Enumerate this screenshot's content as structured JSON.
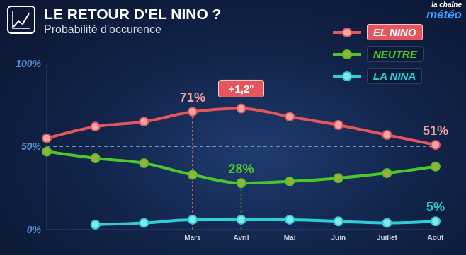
{
  "chart_data": {
    "type": "line",
    "title": "LE RETOUR D'EL NINO ?",
    "subtitle": "Probabilité d'occurence",
    "source": "la chaîne météo",
    "categories": [
      null,
      null,
      null,
      "Mars",
      "Avril",
      "Mai",
      "Juin",
      "Juillet",
      "Août"
    ],
    "series": [
      {
        "name": "EL NINO",
        "color": "#e4555c",
        "values": [
          55,
          62,
          65,
          71,
          73,
          68,
          63,
          57,
          51
        ]
      },
      {
        "name": "NEUTRE",
        "color": "#4cc72a",
        "values": [
          47,
          43,
          40,
          33,
          28,
          29,
          31,
          34,
          38
        ]
      },
      {
        "name": "LA NINA",
        "color": "#2ccfd6",
        "values": [
          null,
          3,
          4,
          6,
          6,
          6,
          5,
          4,
          5
        ]
      }
    ],
    "ylim": [
      0,
      100
    ],
    "yticks": [
      {
        "value": 0,
        "label": "0%"
      },
      {
        "value": 50,
        "label": "50%"
      },
      {
        "value": 100,
        "label": "100%"
      }
    ],
    "hline": 50,
    "marker": "circle",
    "legend": "top-right",
    "grid": false,
    "annotations": [
      {
        "series": "EL NINO",
        "category": "Mars",
        "text": "71%"
      },
      {
        "series": "EL NINO",
        "category": "Avril",
        "text": "+1,2°"
      },
      {
        "series": "NEUTRE",
        "category": "Avril",
        "text": "28%"
      },
      {
        "series": "EL NINO",
        "category": "Août",
        "text": "51%"
      },
      {
        "series": "LA NINA",
        "category": "Août",
        "text": "5%"
      }
    ]
  }
}
